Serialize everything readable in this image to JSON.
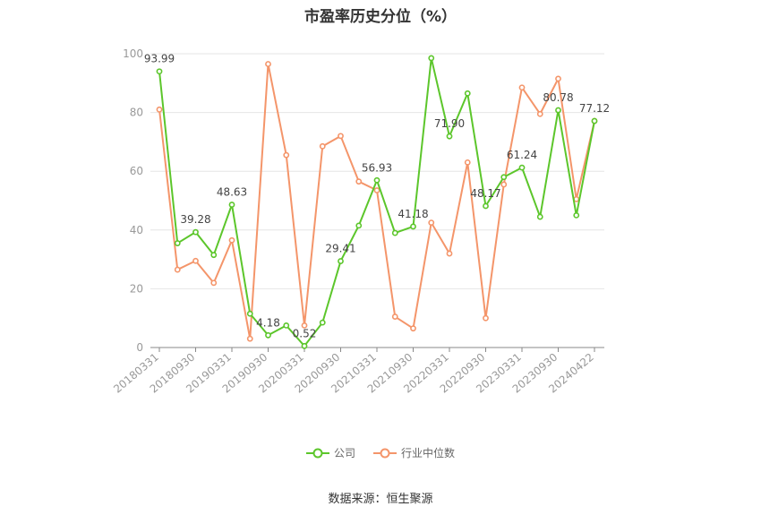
{
  "chart_data": {
    "type": "line",
    "title": "市盈率历史分位（%）",
    "x": [
      "20180331",
      "20180630",
      "20180930",
      "20181231",
      "20190331",
      "20190630",
      "20190930",
      "20191231",
      "20200331",
      "20200630",
      "20200930",
      "20201231",
      "20210331",
      "20210630",
      "20210930",
      "20211231",
      "20220331",
      "20220630",
      "20220930",
      "20221231",
      "20230331",
      "20230630",
      "20230930",
      "20231231",
      "20240422"
    ],
    "x_tick_labels": [
      "20180331",
      "20180930",
      "20190331",
      "20190930",
      "20200331",
      "20200930",
      "20210331",
      "20210930",
      "20220331",
      "20220930",
      "20230331",
      "20230930",
      "20240422"
    ],
    "series": [
      {
        "name": "公司",
        "color": "#5cc62b",
        "values": [
          93.99,
          35.5,
          39.28,
          31.5,
          48.63,
          11.5,
          4.18,
          7.5,
          0.52,
          8.5,
          29.41,
          41.5,
          56.93,
          39.0,
          41.18,
          98.5,
          71.9,
          86.5,
          48.17,
          58.0,
          61.24,
          44.5,
          80.78,
          45.0,
          77.12
        ],
        "labels": {
          "0": "93.99",
          "2": "39.28",
          "4": "48.63",
          "6": "4.18",
          "8": "0.52",
          "10": "29.41",
          "12": "56.93",
          "14": "41.18",
          "16": "71.90",
          "18": "48.17",
          "20": "61.24",
          "22": "80.78",
          "24": "77.12"
        }
      },
      {
        "name": "行业中位数",
        "color": "#f4956a",
        "values": [
          81.0,
          26.5,
          29.5,
          22.0,
          36.5,
          3.0,
          96.5,
          65.5,
          7.5,
          68.5,
          72.0,
          56.5,
          53.5,
          10.5,
          6.5,
          42.5,
          32.0,
          63.0,
          10.0,
          55.5,
          88.5,
          79.5,
          91.5,
          50.5,
          77.12
        ]
      }
    ],
    "yticks": [
      0,
      20,
      40,
      60,
      80,
      100
    ],
    "ylim": [
      0,
      100
    ],
    "grid": true,
    "legend_position": "bottom"
  },
  "source": "数据来源：恒生聚源"
}
